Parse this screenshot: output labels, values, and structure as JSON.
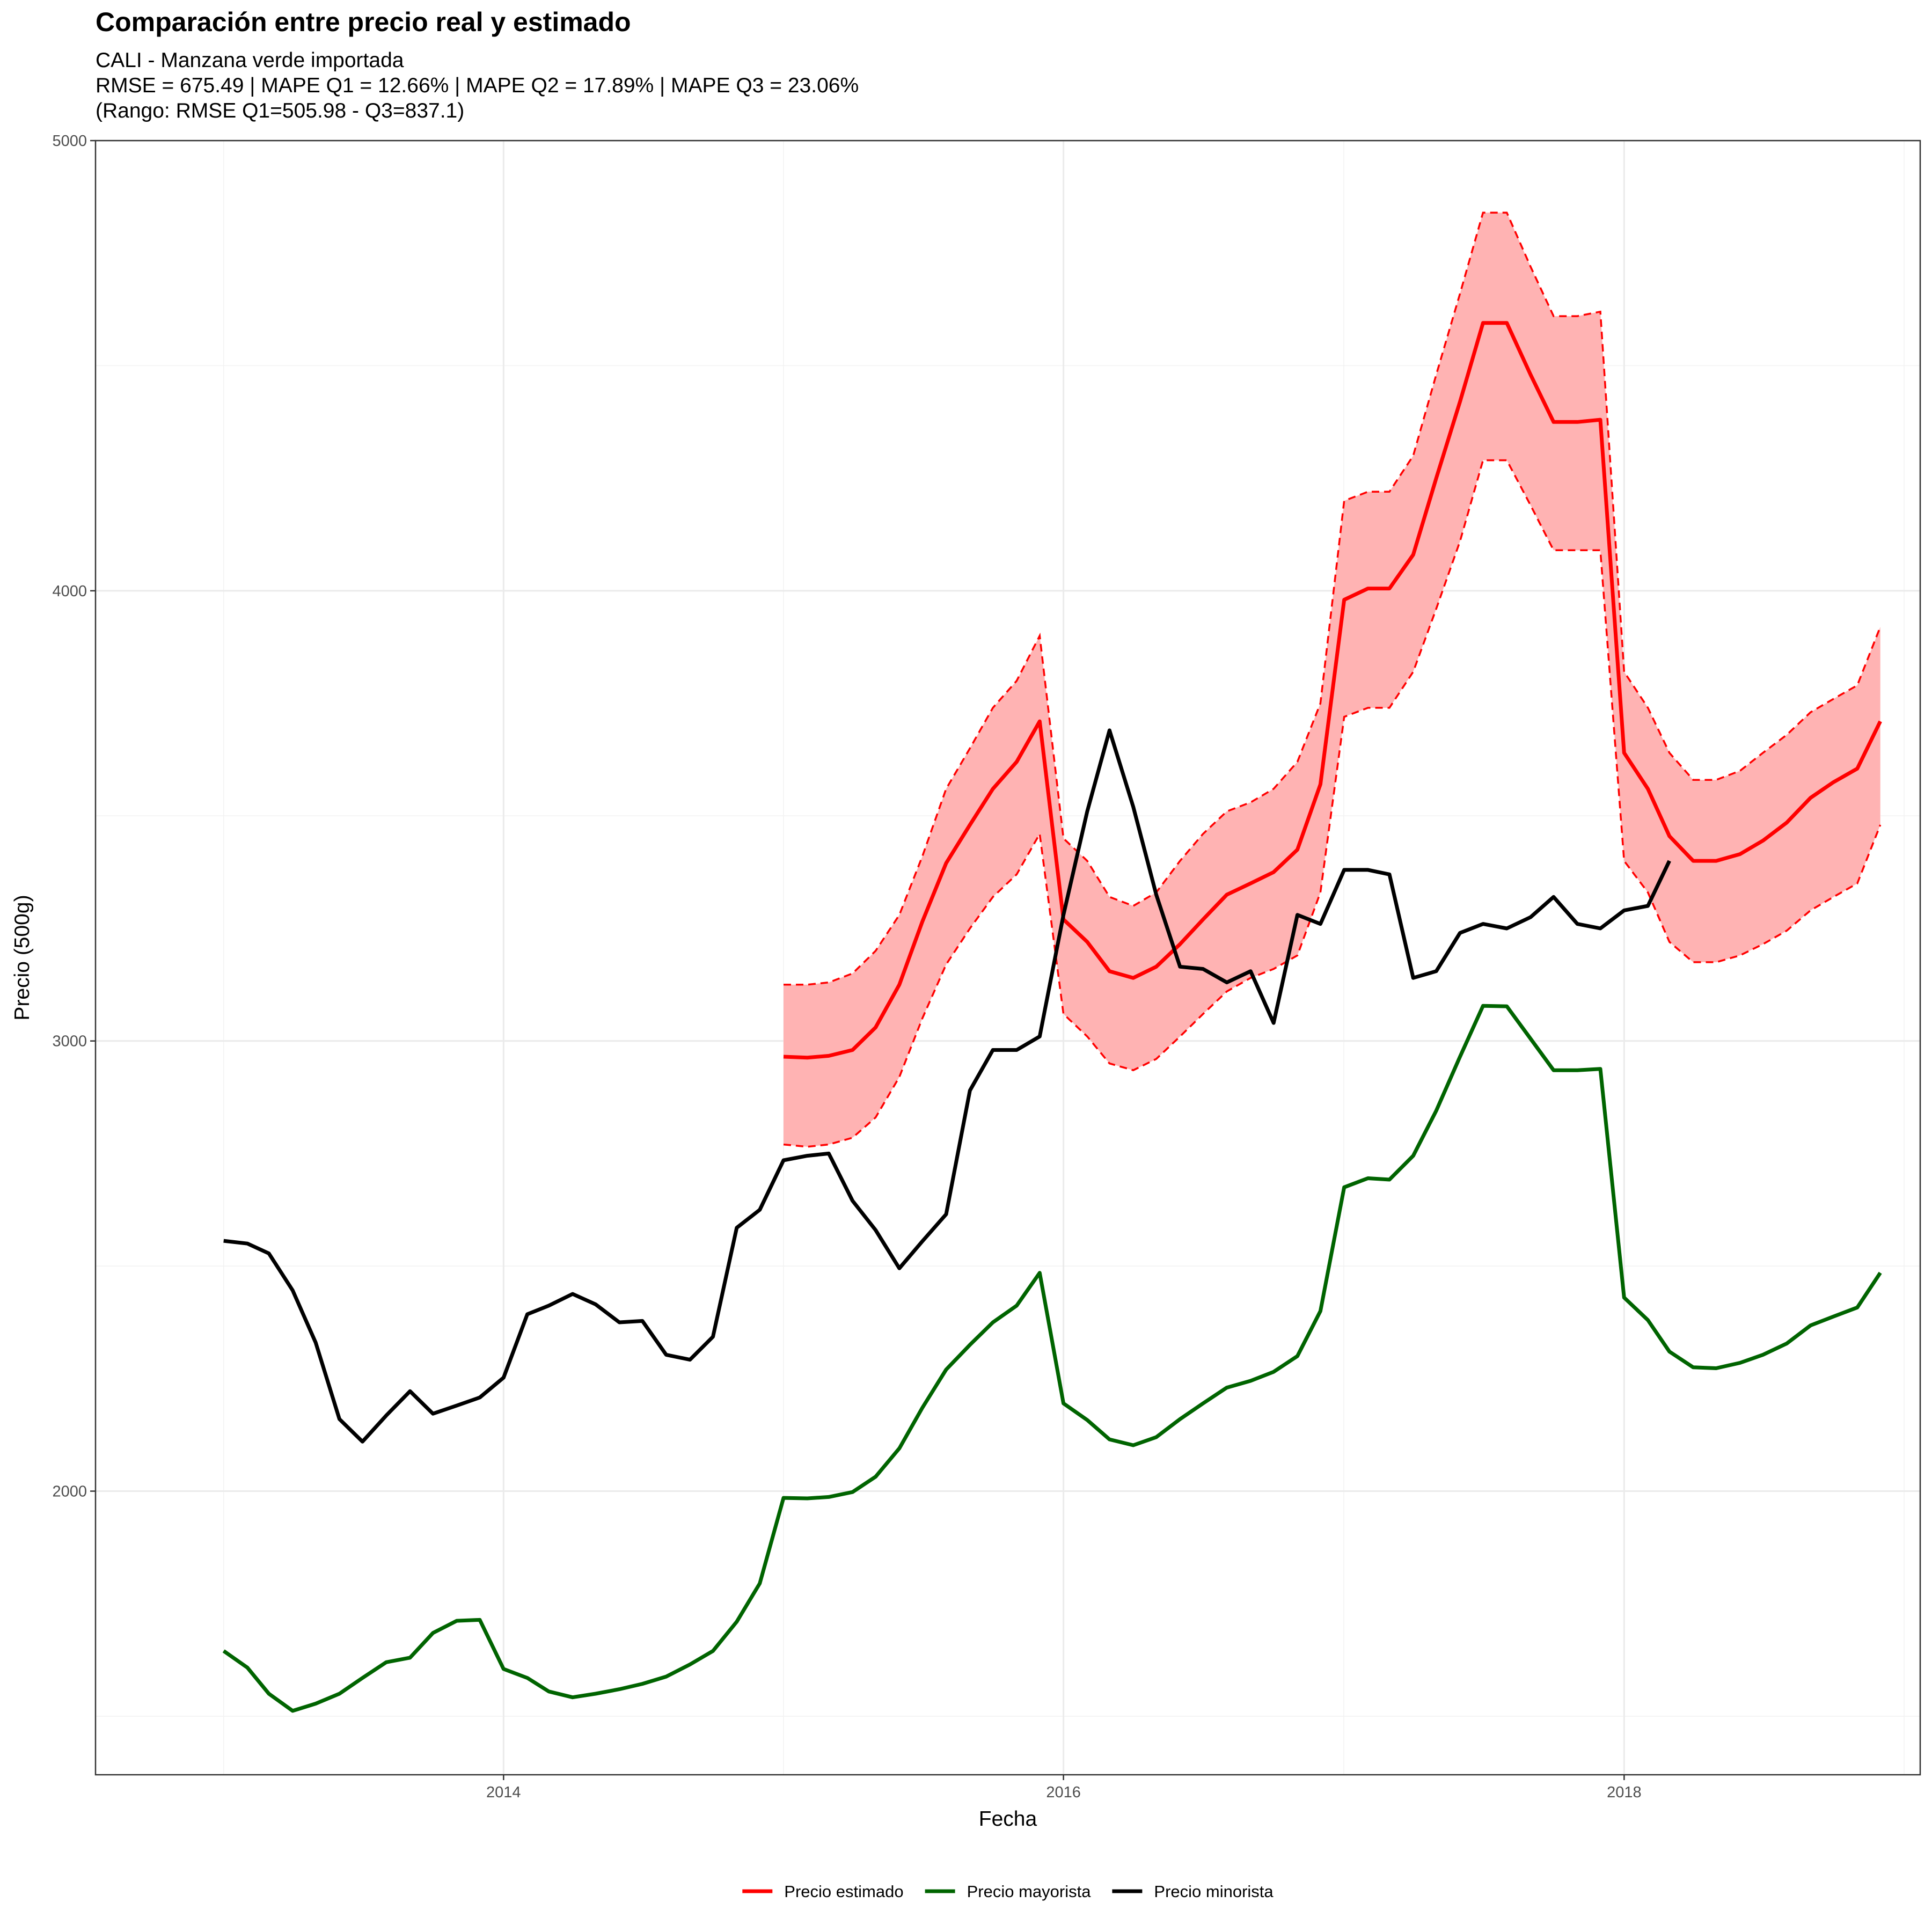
{
  "chart_data": {
    "type": "line",
    "title": "Comparación entre precio real y estimado",
    "subtitle_lines": [
      "CALI - Manzana verde importada",
      "RMSE = 675.49 | MAPE Q1 = 12.66% | MAPE Q2 = 17.89% | MAPE Q3 = 23.06%",
      "(Rango: RMSE Q1=505.98 - Q3=837.1)"
    ],
    "xlabel": "Fecha",
    "ylabel": "Precio (500g)",
    "x_range": [
      "2012-07-18",
      "2019-01-22"
    ],
    "y_range": [
      1370,
      5000
    ],
    "y_ticks": [
      2000,
      3000,
      4000,
      5000
    ],
    "y_tick_labels": [
      "2000",
      "3000",
      "4000",
      "5000"
    ],
    "x_ticks": [
      "2014-01-01",
      "2016-01-01",
      "2018-01-01"
    ],
    "x_tick_labels": [
      "2014",
      "2016",
      "2018"
    ],
    "grid": true,
    "legend_position": "bottom",
    "band": {
      "name": "Intervalo estimado",
      "fill": "#ffb3b3",
      "line_color": "#ff0000",
      "dates": [
        "2015-01",
        "2015-02",
        "2015-03",
        "2015-04",
        "2015-05",
        "2015-06",
        "2015-07",
        "2015-08",
        "2015-09",
        "2015-10",
        "2015-11",
        "2015-12",
        "2016-01",
        "2016-02",
        "2016-03",
        "2016-04",
        "2016-05",
        "2016-06",
        "2016-07",
        "2016-08",
        "2016-09",
        "2016-10",
        "2016-11",
        "2016-12",
        "2017-01",
        "2017-02",
        "2017-03",
        "2017-04",
        "2017-05",
        "2017-06",
        "2017-07",
        "2017-08",
        "2017-09",
        "2017-10",
        "2017-11",
        "2017-12",
        "2018-01",
        "2018-02",
        "2018-03",
        "2018-04",
        "2018-05",
        "2018-06",
        "2018-07",
        "2018-08",
        "2018-09",
        "2018-10",
        "2018-11",
        "2018-12"
      ],
      "lower": [
        2770,
        2765,
        2770,
        2785,
        2830,
        2920,
        3050,
        3170,
        3250,
        3320,
        3370,
        3460,
        3060,
        3010,
        2950,
        2935,
        2960,
        3010,
        3060,
        3110,
        3140,
        3160,
        3190,
        3330,
        3720,
        3740,
        3740,
        3820,
        3960,
        4110,
        4290,
        4290,
        4190,
        4090,
        4090,
        4090,
        3400,
        3330,
        3220,
        3175,
        3175,
        3190,
        3215,
        3245,
        3290,
        3320,
        3350,
        3480
      ],
      "upper": [
        3125,
        3125,
        3130,
        3150,
        3200,
        3280,
        3410,
        3560,
        3650,
        3740,
        3800,
        3900,
        3450,
        3400,
        3320,
        3300,
        3330,
        3400,
        3460,
        3510,
        3530,
        3560,
        3620,
        3750,
        4200,
        4220,
        4220,
        4300,
        4480,
        4660,
        4840,
        4840,
        4720,
        4610,
        4610,
        4620,
        3820,
        3740,
        3640,
        3580,
        3580,
        3600,
        3640,
        3680,
        3730,
        3760,
        3790,
        3920
      ]
    },
    "series": [
      {
        "name": "Precio estimado",
        "color": "#ff0000",
        "dates": [
          "2015-01",
          "2015-02",
          "2015-03",
          "2015-04",
          "2015-05",
          "2015-06",
          "2015-07",
          "2015-08",
          "2015-09",
          "2015-10",
          "2015-11",
          "2015-12",
          "2016-01",
          "2016-02",
          "2016-03",
          "2016-04",
          "2016-05",
          "2016-06",
          "2016-07",
          "2016-08",
          "2016-09",
          "2016-10",
          "2016-11",
          "2016-12",
          "2017-01",
          "2017-02",
          "2017-03",
          "2017-04",
          "2017-05",
          "2017-06",
          "2017-07",
          "2017-08",
          "2017-09",
          "2017-10",
          "2017-11",
          "2017-12",
          "2018-01",
          "2018-02",
          "2018-03",
          "2018-04",
          "2018-05",
          "2018-06",
          "2018-07",
          "2018-08",
          "2018-09",
          "2018-10",
          "2018-11",
          "2018-12"
        ],
        "values": [
          2965,
          2963,
          2967,
          2980,
          3030,
          3125,
          3265,
          3395,
          3480,
          3560,
          3620,
          3710,
          3270,
          3220,
          3155,
          3140,
          3165,
          3215,
          3270,
          3325,
          3350,
          3375,
          3425,
          3570,
          3980,
          4005,
          4005,
          4080,
          4250,
          4420,
          4595,
          4595,
          4480,
          4375,
          4375,
          4380,
          3640,
          3560,
          3455,
          3400,
          3400,
          3415,
          3445,
          3485,
          3540,
          3575,
          3605,
          3710
        ]
      },
      {
        "name": "Precio mayorista",
        "color": "#006400",
        "dates": [
          "2013-01",
          "2013-02",
          "2013-03",
          "2013-04",
          "2013-05",
          "2013-06",
          "2013-07",
          "2013-08",
          "2013-09",
          "2013-10",
          "2013-11",
          "2013-12",
          "2014-01",
          "2014-02",
          "2014-03",
          "2014-04",
          "2014-05",
          "2014-06",
          "2014-07",
          "2014-08",
          "2014-09",
          "2014-10",
          "2014-11",
          "2014-12",
          "2015-01",
          "2015-02",
          "2015-03",
          "2015-04",
          "2015-05",
          "2015-06",
          "2015-07",
          "2015-08",
          "2015-09",
          "2015-10",
          "2015-11",
          "2015-12",
          "2016-01",
          "2016-02",
          "2016-03",
          "2016-04",
          "2016-05",
          "2016-06",
          "2016-07",
          "2016-08",
          "2016-09",
          "2016-10",
          "2016-11",
          "2016-12",
          "2017-01",
          "2017-02",
          "2017-03",
          "2017-04",
          "2017-05",
          "2017-06",
          "2017-07",
          "2017-08",
          "2017-09",
          "2017-10",
          "2017-11",
          "2017-12",
          "2018-01",
          "2018-02",
          "2018-03",
          "2018-04",
          "2018-05",
          "2018-06",
          "2018-07",
          "2018-08",
          "2018-09",
          "2018-10",
          "2018-11",
          "2018-12"
        ],
        "values": [
          1645,
          1608,
          1550,
          1512,
          1528,
          1550,
          1585,
          1620,
          1630,
          1685,
          1712,
          1714,
          1605,
          1585,
          1555,
          1542,
          1550,
          1560,
          1572,
          1588,
          1615,
          1645,
          1710,
          1795,
          1985,
          1984,
          1987,
          1998,
          2032,
          2095,
          2185,
          2270,
          2325,
          2375,
          2412,
          2485,
          2195,
          2158,
          2115,
          2102,
          2120,
          2160,
          2195,
          2230,
          2245,
          2265,
          2300,
          2400,
          2675,
          2695,
          2692,
          2745,
          2845,
          2965,
          3078,
          3077,
          3005,
          2935,
          2935,
          2938,
          2430,
          2380,
          2310,
          2275,
          2273,
          2285,
          2303,
          2328,
          2368,
          2388,
          2408,
          2485
        ]
      },
      {
        "name": "Precio minorista",
        "color": "#000000",
        "dates": [
          "2013-01",
          "2013-02",
          "2013-03",
          "2013-04",
          "2013-05",
          "2013-06",
          "2013-07",
          "2013-08",
          "2013-09",
          "2013-10",
          "2013-11",
          "2013-12",
          "2014-01",
          "2014-02",
          "2014-03",
          "2014-04",
          "2014-05",
          "2014-06",
          "2014-07",
          "2014-08",
          "2014-09",
          "2014-10",
          "2014-11",
          "2014-12",
          "2015-01",
          "2015-02",
          "2015-03",
          "2015-04",
          "2015-05",
          "2015-06",
          "2015-07",
          "2015-08",
          "2015-09",
          "2015-10",
          "2015-11",
          "2015-12",
          "2016-01",
          "2016-02",
          "2016-03",
          "2016-04",
          "2016-05",
          "2016-06",
          "2016-07",
          "2016-08",
          "2016-09",
          "2016-10",
          "2016-11",
          "2016-12",
          "2017-01",
          "2017-02",
          "2017-03",
          "2017-04",
          "2017-05",
          "2017-06",
          "2017-07",
          "2017-08",
          "2017-09",
          "2017-10",
          "2017-11",
          "2017-12",
          "2018-01",
          "2018-02",
          "2018-03"
        ],
        "values": [
          2556,
          2550,
          2528,
          2446,
          2330,
          2160,
          2110,
          2168,
          2222,
          2172,
          2190,
          2208,
          2252,
          2393,
          2412,
          2438,
          2415,
          2375,
          2378,
          2303,
          2292,
          2343,
          2585,
          2625,
          2735,
          2745,
          2750,
          2645,
          2580,
          2495,
          2555,
          2615,
          2890,
          2980,
          2980,
          3010,
          3280,
          3510,
          3690,
          3520,
          3325,
          3165,
          3160,
          3130,
          3155,
          3040,
          3280,
          3260,
          3380,
          3380,
          3370,
          3140,
          3155,
          3240,
          3260,
          3250,
          3275,
          3320,
          3260,
          3250,
          3290,
          3300,
          3400
        ]
      }
    ]
  }
}
